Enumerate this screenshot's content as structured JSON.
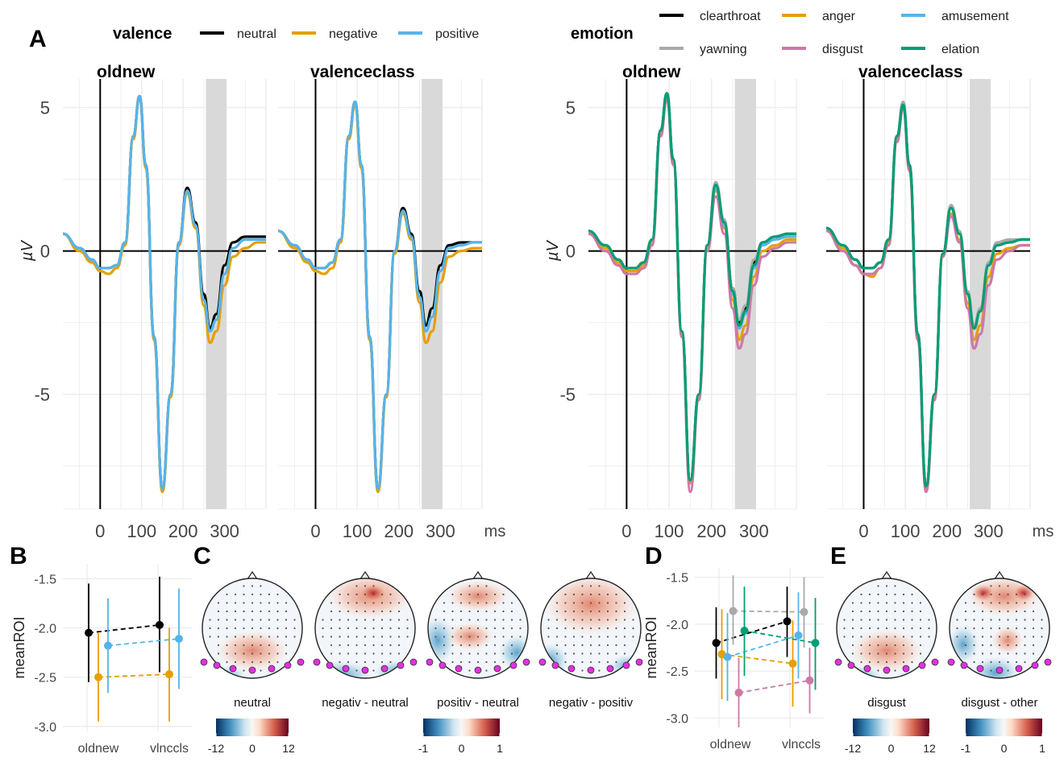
{
  "panels": {
    "A": "A",
    "B": "B",
    "C": "C",
    "D": "D",
    "E": "E"
  },
  "legend_valence": {
    "title": "valence",
    "items": [
      {
        "label": "neutral",
        "color": "#000000"
      },
      {
        "label": "negative",
        "color": "#E69F00"
      },
      {
        "label": "positive",
        "color": "#56B4E9"
      }
    ]
  },
  "legend_emotion": {
    "title": "emotion",
    "items": [
      {
        "label": "clearthroat",
        "color": "#000000"
      },
      {
        "label": "anger",
        "color": "#E69F00"
      },
      {
        "label": "amusement",
        "color": "#56B4E9"
      },
      {
        "label": "yawning",
        "color": "#AAAAAA"
      },
      {
        "label": "disgust",
        "color": "#CC79A7"
      },
      {
        "label": "elation",
        "color": "#009E73"
      }
    ]
  },
  "chart_data": [
    {
      "type": "line",
      "group": "valence",
      "facets": [
        "oldnew",
        "valenceclass"
      ],
      "xlabel": "ms",
      "ylabel": "µV",
      "xticks": [
        0,
        100,
        200,
        300
      ],
      "yticks": [
        5,
        0,
        -5
      ],
      "xlim": [
        -90,
        400
      ],
      "ylim": [
        -9,
        6
      ],
      "shaded_window_ms": [
        255,
        305
      ],
      "x": [
        -90,
        -50,
        -20,
        0,
        20,
        40,
        60,
        80,
        95,
        110,
        130,
        150,
        170,
        190,
        210,
        230,
        250,
        265,
        280,
        300,
        320,
        350,
        380,
        400
      ],
      "series": {
        "oldnew": [
          {
            "name": "neutral",
            "values": [
              0.6,
              0.1,
              -0.3,
              -0.6,
              -0.6,
              -0.5,
              0.3,
              4.0,
              5.4,
              3.0,
              -3.0,
              -8.3,
              -5.0,
              0.3,
              2.2,
              1.0,
              -1.5,
              -2.7,
              -2.2,
              -0.5,
              0.3,
              0.5,
              0.5,
              0.5
            ]
          },
          {
            "name": "negative",
            "values": [
              0.6,
              0.0,
              -0.4,
              -0.7,
              -0.8,
              -0.6,
              0.2,
              3.9,
              5.4,
              2.9,
              -3.1,
              -8.4,
              -5.1,
              0.2,
              2.0,
              0.8,
              -1.9,
              -3.2,
              -2.8,
              -1.2,
              -0.2,
              0.1,
              0.3,
              0.3
            ]
          },
          {
            "name": "positive",
            "values": [
              0.6,
              0.1,
              -0.3,
              -0.6,
              -0.6,
              -0.5,
              0.3,
              4.0,
              5.4,
              3.0,
              -3.0,
              -8.3,
              -5.0,
              0.3,
              2.1,
              0.9,
              -1.7,
              -2.8,
              -2.4,
              -0.8,
              0.1,
              0.4,
              0.4,
              0.4
            ]
          }
        ],
        "valenceclass": [
          {
            "name": "neutral",
            "values": [
              0.7,
              0.2,
              -0.3,
              -0.6,
              -0.6,
              -0.4,
              0.4,
              4.0,
              5.2,
              3.0,
              -3.0,
              -8.3,
              -5.0,
              0.0,
              1.5,
              0.6,
              -1.4,
              -2.6,
              -2.0,
              -0.5,
              0.2,
              0.3,
              0.3,
              0.3
            ]
          },
          {
            "name": "negative",
            "values": [
              0.7,
              0.1,
              -0.4,
              -0.7,
              -0.8,
              -0.6,
              0.3,
              3.9,
              5.1,
              2.9,
              -3.1,
              -8.4,
              -5.1,
              -0.1,
              1.3,
              0.4,
              -1.8,
              -3.2,
              -2.8,
              -1.1,
              -0.2,
              0.0,
              0.1,
              0.1
            ]
          },
          {
            "name": "positive",
            "values": [
              0.7,
              0.2,
              -0.3,
              -0.6,
              -0.6,
              -0.4,
              0.4,
              4.0,
              5.2,
              3.0,
              -3.0,
              -8.3,
              -5.0,
              0.0,
              1.4,
              0.5,
              -1.6,
              -2.8,
              -2.3,
              -0.7,
              0.1,
              0.2,
              0.3,
              0.3
            ]
          }
        ]
      }
    },
    {
      "type": "line",
      "group": "emotion",
      "facets": [
        "oldnew",
        "valenceclass"
      ],
      "xlabel": "ms",
      "ylabel": "µV",
      "xticks": [
        0,
        100,
        200,
        300
      ],
      "yticks": [
        5,
        0,
        -5
      ],
      "xlim": [
        -90,
        400
      ],
      "ylim": [
        -9,
        6
      ],
      "shaded_window_ms": [
        255,
        305
      ],
      "x": [
        -90,
        -50,
        -20,
        0,
        20,
        40,
        60,
        80,
        95,
        110,
        130,
        150,
        170,
        190,
        210,
        230,
        250,
        265,
        280,
        300,
        320,
        350,
        380,
        400
      ],
      "series": {
        "oldnew": [
          {
            "name": "clearthroat",
            "values": [
              0.7,
              0.2,
              -0.3,
              -0.6,
              -0.6,
              -0.4,
              0.4,
              4.2,
              5.5,
              3.2,
              -2.8,
              -8.0,
              -5.0,
              0.2,
              2.3,
              1.0,
              -1.3,
              -2.5,
              -2.0,
              -0.4,
              0.3,
              0.5,
              0.6,
              0.6
            ]
          },
          {
            "name": "anger",
            "values": [
              0.7,
              0.1,
              -0.4,
              -0.7,
              -0.7,
              -0.5,
              0.3,
              4.1,
              5.4,
              3.1,
              -2.9,
              -8.1,
              -5.1,
              0.1,
              2.1,
              0.8,
              -1.7,
              -3.1,
              -2.6,
              -0.9,
              0.0,
              0.2,
              0.4,
              0.4
            ]
          },
          {
            "name": "amusement",
            "values": [
              0.7,
              0.2,
              -0.3,
              -0.6,
              -0.6,
              -0.4,
              0.4,
              4.2,
              5.5,
              3.2,
              -2.8,
              -8.0,
              -5.0,
              0.2,
              2.2,
              0.9,
              -1.5,
              -2.7,
              -2.2,
              -0.6,
              0.2,
              0.4,
              0.5,
              0.5
            ]
          },
          {
            "name": "yawning",
            "values": [
              0.7,
              0.2,
              -0.3,
              -0.6,
              -0.6,
              -0.4,
              0.4,
              4.2,
              5.5,
              3.2,
              -2.8,
              -8.0,
              -5.0,
              0.2,
              2.4,
              1.1,
              -1.3,
              -2.4,
              -1.9,
              -0.3,
              0.3,
              0.5,
              0.6,
              0.6
            ]
          },
          {
            "name": "disgust",
            "values": [
              0.6,
              0.0,
              -0.5,
              -0.8,
              -0.8,
              -0.6,
              0.2,
              4.0,
              5.3,
              3.0,
              -3.0,
              -8.4,
              -5.2,
              0.0,
              1.9,
              0.6,
              -2.0,
              -3.4,
              -2.9,
              -1.2,
              -0.2,
              0.1,
              0.3,
              0.3
            ]
          },
          {
            "name": "elation",
            "values": [
              0.7,
              0.2,
              -0.3,
              -0.6,
              -0.6,
              -0.4,
              0.4,
              4.2,
              5.5,
              3.2,
              -2.8,
              -8.0,
              -5.0,
              0.2,
              2.3,
              1.0,
              -1.4,
              -2.6,
              -2.1,
              -0.5,
              0.3,
              0.5,
              0.6,
              0.6
            ]
          }
        ],
        "valenceclass": [
          {
            "name": "clearthroat",
            "values": [
              0.8,
              0.2,
              -0.3,
              -0.6,
              -0.6,
              -0.4,
              0.4,
              4.0,
              5.1,
              3.0,
              -2.9,
              -8.2,
              -5.0,
              -0.1,
              1.5,
              0.6,
              -1.5,
              -2.7,
              -2.1,
              -0.5,
              0.2,
              0.3,
              0.4,
              0.4
            ]
          },
          {
            "name": "anger",
            "values": [
              0.8,
              0.1,
              -0.5,
              -0.8,
              -0.9,
              -0.6,
              0.3,
              3.9,
              5.0,
              2.9,
              -3.0,
              -8.3,
              -5.1,
              -0.2,
              1.3,
              0.4,
              -1.8,
              -3.1,
              -2.6,
              -0.9,
              -0.1,
              0.1,
              0.2,
              0.2
            ]
          },
          {
            "name": "amusement",
            "values": [
              0.8,
              0.2,
              -0.3,
              -0.6,
              -0.6,
              -0.4,
              0.4,
              4.0,
              5.2,
              3.0,
              -2.9,
              -8.2,
              -5.0,
              -0.1,
              1.5,
              0.6,
              -1.5,
              -2.7,
              -2.1,
              -0.5,
              0.2,
              0.3,
              0.4,
              0.4
            ]
          },
          {
            "name": "yawning",
            "values": [
              0.8,
              0.2,
              -0.3,
              -0.6,
              -0.6,
              -0.4,
              0.4,
              4.0,
              5.2,
              3.0,
              -2.9,
              -8.2,
              -5.0,
              -0.1,
              1.6,
              0.7,
              -1.4,
              -2.6,
              -2.0,
              -0.4,
              0.3,
              0.4,
              0.4,
              0.4
            ]
          },
          {
            "name": "disgust",
            "values": [
              0.7,
              0.0,
              -0.5,
              -0.8,
              -0.8,
              -0.6,
              0.2,
              3.8,
              5.0,
              2.8,
              -3.1,
              -8.4,
              -5.2,
              -0.2,
              1.2,
              0.3,
              -2.0,
              -3.4,
              -2.9,
              -1.2,
              -0.3,
              0.0,
              0.2,
              0.2
            ]
          },
          {
            "name": "elation",
            "values": [
              0.8,
              0.2,
              -0.3,
              -0.6,
              -0.6,
              -0.4,
              0.4,
              4.0,
              5.1,
              3.0,
              -2.9,
              -8.2,
              -5.0,
              -0.1,
              1.5,
              0.6,
              -1.5,
              -2.7,
              -2.1,
              -0.5,
              0.2,
              0.3,
              0.4,
              0.4
            ]
          }
        ]
      }
    },
    {
      "type": "scatter",
      "panel": "B",
      "ylabel": "meanROI",
      "categories": [
        "oldnew",
        "vlnccls"
      ],
      "yticks": [
        -1.5,
        -2.0,
        -2.5,
        -3.0
      ],
      "ylim": [
        -3.05,
        -1.35
      ],
      "series": [
        {
          "name": "neutral",
          "values": [
            -2.05,
            -1.97
          ],
          "lower": [
            -2.55,
            -2.45
          ],
          "upper": [
            -1.55,
            -1.48
          ]
        },
        {
          "name": "negative",
          "values": [
            -2.5,
            -2.47
          ],
          "lower": [
            -2.95,
            -2.95
          ],
          "upper": [
            -2.05,
            -2.0
          ]
        },
        {
          "name": "positive",
          "values": [
            -2.18,
            -2.11
          ],
          "lower": [
            -2.66,
            -2.62
          ],
          "upper": [
            -1.7,
            -1.6
          ]
        }
      ]
    },
    {
      "type": "scatter",
      "panel": "D",
      "ylabel": "meanROI",
      "categories": [
        "oldnew",
        "vlnccls"
      ],
      "yticks": [
        -1.5,
        -2.0,
        -2.5,
        -3.0
      ],
      "ylim": [
        -3.1,
        -1.4
      ],
      "series": [
        {
          "name": "clearthroat",
          "values": [
            -2.2,
            -1.97
          ],
          "lower": [
            -2.58,
            -2.35
          ],
          "upper": [
            -1.82,
            -1.6
          ]
        },
        {
          "name": "anger",
          "values": [
            -2.32,
            -2.42
          ],
          "lower": [
            -2.8,
            -2.88
          ],
          "upper": [
            -1.84,
            -1.96
          ]
        },
        {
          "name": "amusement",
          "values": [
            -2.35,
            -2.12
          ],
          "lower": [
            -2.82,
            -2.58
          ],
          "upper": [
            -1.88,
            -1.66
          ]
        },
        {
          "name": "yawning",
          "values": [
            -1.86,
            -1.87
          ],
          "lower": [
            -2.22,
            -2.25
          ],
          "upper": [
            -1.48,
            -1.5
          ]
        },
        {
          "name": "disgust",
          "values": [
            -2.73,
            -2.6
          ],
          "lower": [
            -3.1,
            -2.95
          ],
          "upper": [
            -2.36,
            -2.25
          ]
        },
        {
          "name": "elation",
          "values": [
            -2.07,
            -2.2
          ],
          "lower": [
            -2.55,
            -2.7
          ],
          "upper": [
            -1.6,
            -1.72
          ]
        }
      ]
    }
  ],
  "topomaps_C": [
    {
      "label": "neutral"
    },
    {
      "label": "negativ - neutral"
    },
    {
      "label": "positiv - neutral"
    },
    {
      "label": "negativ - positiv"
    }
  ],
  "topomaps_E": [
    {
      "label": "disgust"
    },
    {
      "label": "disgust - other"
    }
  ],
  "colorbars": [
    {
      "ticks": [
        "-12",
        "0",
        "12"
      ]
    },
    {
      "ticks": [
        "-1",
        "0",
        "1"
      ]
    },
    {
      "ticks": [
        "-12",
        "0",
        "12"
      ]
    },
    {
      "ticks": [
        "-1",
        "0",
        "1"
      ]
    }
  ],
  "colors": {
    "scale_low": "#2166AC",
    "scale_mid": "#F7F7F7",
    "scale_high": "#B2182B",
    "roi_electrode": "#E62EE6",
    "shade": "#D9D9D9",
    "grid": "#EBEBEB"
  }
}
